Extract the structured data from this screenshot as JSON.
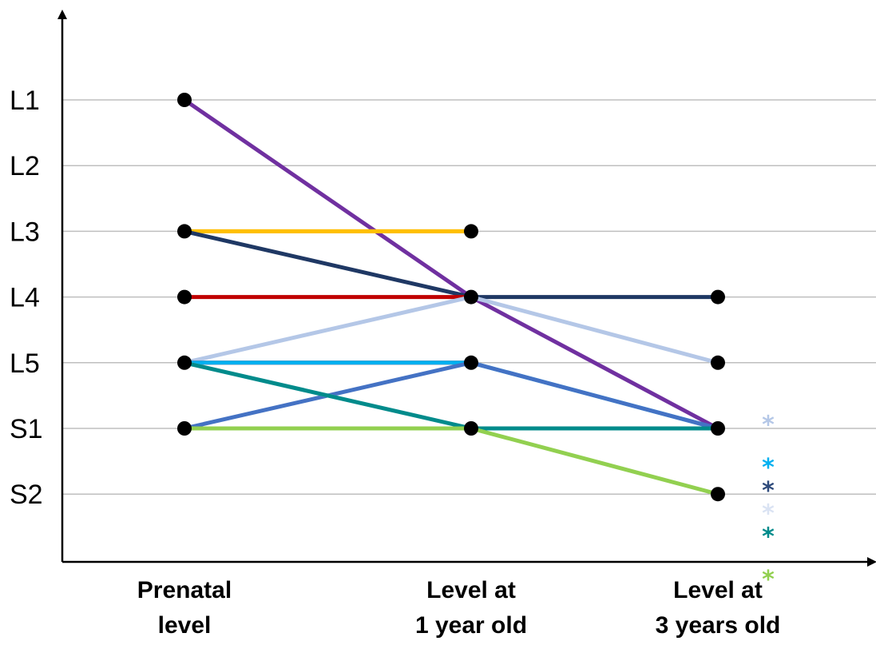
{
  "chart_data": {
    "type": "line",
    "y_categories": [
      "L1",
      "L2",
      "L3",
      "L4",
      "L5",
      "S1",
      "S2"
    ],
    "x_categories": [
      [
        "Prenatal",
        "level"
      ],
      [
        "Level at",
        "1 year old"
      ],
      [
        "Level at",
        "3 years old"
      ]
    ],
    "grid": true,
    "series": [
      {
        "color": "#7030A0",
        "values": [
          "L1",
          "L4",
          "S1"
        ]
      },
      {
        "color": "#F4B183",
        "values": [
          "L3",
          "L3",
          null
        ]
      },
      {
        "color": "#FFC000",
        "values": [
          "L3",
          "L3",
          null
        ]
      },
      {
        "color": "#1F3864",
        "values": [
          "L3",
          "L4",
          "L4"
        ]
      },
      {
        "color": "#C00000",
        "values": [
          "L4",
          "L4",
          null
        ]
      },
      {
        "color": "#B4C7E7",
        "values": [
          "L5",
          "L4",
          "L5"
        ]
      },
      {
        "color": "#FF0000",
        "values": [
          "L5",
          "L5",
          null
        ]
      },
      {
        "color": "#00B0F0",
        "values": [
          "L5",
          "L5",
          "S1"
        ]
      },
      {
        "color": "#4472C4",
        "values": [
          "S1",
          "L5",
          "S1"
        ]
      },
      {
        "color": "#DAE3F3",
        "values": [
          "L5",
          "S1",
          "S1"
        ]
      },
      {
        "color": "#008B8B",
        "values": [
          "L5",
          "S1",
          "S1"
        ]
      },
      {
        "color": "#92D050",
        "values": [
          "S1",
          "S1",
          "S2"
        ]
      }
    ],
    "annotations": [
      {
        "text": "*",
        "color": "#B4C7E7",
        "level": 4.85
      },
      {
        "text": "*",
        "color": "#00B0F0",
        "level": 5.5
      },
      {
        "text": "*",
        "color": "#2F4B7C",
        "level": 5.85
      },
      {
        "text": "*",
        "color": "#DAE3F3",
        "level": 6.2
      },
      {
        "text": "*",
        "color": "#008B8B",
        "level": 6.55
      },
      {
        "text": "*",
        "color": "#92D050",
        "level": 7.2
      }
    ]
  }
}
